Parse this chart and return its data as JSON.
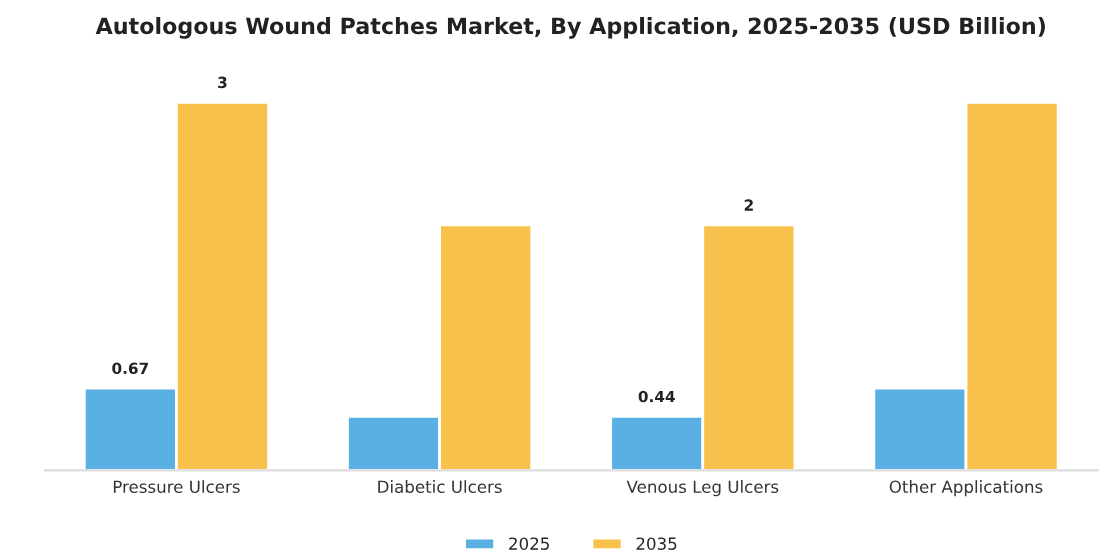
{
  "chart_data": {
    "type": "bar",
    "title": "Autologous Wound Patches Market, By Application, 2025-2035 (USD Billion)",
    "categories": [
      "Pressure Ulcers",
      "Diabetic Ulcers",
      "Venous Leg Ulcers",
      "Other Applications"
    ],
    "series": [
      {
        "name": "2025",
        "color": "#5aafe3",
        "values": [
          0.67,
          0.44,
          0.44,
          0.67
        ],
        "value_labels": [
          "0.67",
          null,
          "0.44",
          null
        ]
      },
      {
        "name": "2035",
        "color": "#f7c14c",
        "values": [
          3,
          2,
          2,
          3
        ],
        "value_labels": [
          "3",
          null,
          "2",
          null
        ]
      }
    ],
    "legend": "bottom",
    "grid": false
  }
}
